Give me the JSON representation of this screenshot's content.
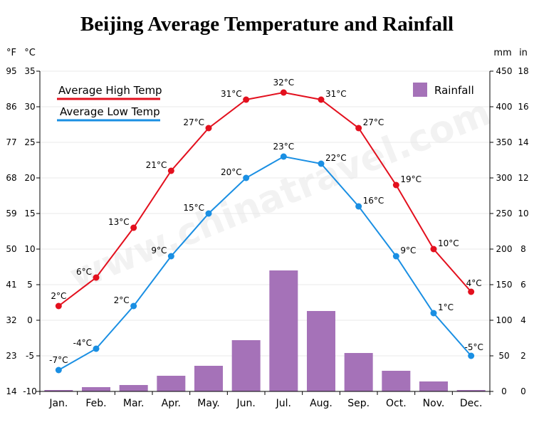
{
  "chart_data": {
    "type": "bar+line",
    "title": "Beijing Average Temperature and Rainfall",
    "categories": [
      "Jan.",
      "Feb.",
      "Mar.",
      "Apr.",
      "May.",
      "Jun.",
      "Jul.",
      "Aug.",
      "Sep.",
      "Oct.",
      "Nov.",
      "Dec."
    ],
    "series": [
      {
        "name": "Average High Temp",
        "type": "line",
        "axis": "left-celsius",
        "color": "#e3101e",
        "values": [
          2,
          6,
          13,
          21,
          27,
          31,
          32,
          31,
          27,
          19,
          10,
          4
        ],
        "labels": [
          "2°C",
          "6°C",
          "13°C",
          "21°C",
          "27°C",
          "31°C",
          "32°C",
          "31°C",
          "27°C",
          "19°C",
          "10°C",
          "4°C"
        ]
      },
      {
        "name": "Average Low Temp",
        "type": "line",
        "axis": "left-celsius",
        "color": "#1a8fe3",
        "values": [
          -7,
          -4,
          2,
          9,
          15,
          20,
          23,
          22,
          16,
          9,
          1,
          -5
        ],
        "labels": [
          "-7°C",
          "-4°C",
          "2°C",
          "9°C",
          "15°C",
          "20°C",
          "23°C",
          "22°C",
          "16°C",
          "9°C",
          "1°C",
          "-5°C"
        ]
      },
      {
        "name": "Rainfall",
        "type": "bar",
        "axis": "right-mm",
        "color": "#a572b8",
        "values": [
          2,
          6,
          9,
          22,
          36,
          72,
          170,
          113,
          54,
          29,
          14,
          2
        ]
      }
    ],
    "axes": {
      "left_f": {
        "unit": "°F",
        "ticks": [
          "95",
          "86",
          "77",
          "68",
          "59",
          "50",
          "41",
          "32",
          "23",
          "14"
        ]
      },
      "left_c": {
        "unit": "°C",
        "ticks": [
          "35",
          "30",
          "25",
          "20",
          "15",
          "10",
          "5",
          "0",
          "-5",
          "-10"
        ],
        "range": [
          -10,
          35
        ]
      },
      "right_mm": {
        "unit": "mm",
        "ticks": [
          "450",
          "400",
          "350",
          "300",
          "250",
          "200",
          "150",
          "100",
          "50",
          "0"
        ],
        "range": [
          0,
          450
        ]
      },
      "right_in": {
        "unit": "in",
        "ticks": [
          "18",
          "16",
          "14",
          "12",
          "10",
          "8",
          "6",
          "4",
          "2",
          "0"
        ]
      }
    },
    "grid": true,
    "legend_placement": "top-left and top-right",
    "watermark": "www.chinatravel.com"
  }
}
